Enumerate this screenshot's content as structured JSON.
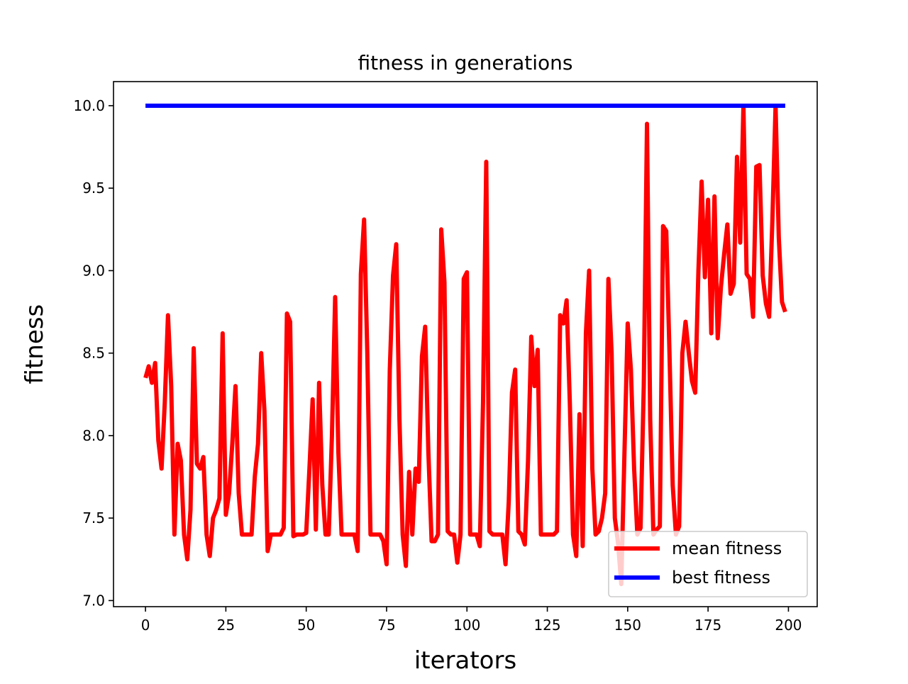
{
  "chart_data": {
    "type": "line",
    "title": "fitness in generations",
    "xlabel": "iterators",
    "ylabel": "fitness",
    "x": [
      0,
      1,
      2,
      3,
      4,
      5,
      6,
      7,
      8,
      9,
      10,
      11,
      12,
      13,
      14,
      15,
      16,
      17,
      18,
      19,
      20,
      21,
      22,
      23,
      24,
      25,
      26,
      27,
      28,
      29,
      30,
      31,
      32,
      33,
      34,
      35,
      36,
      37,
      38,
      39,
      40,
      41,
      42,
      43,
      44,
      45,
      46,
      47,
      48,
      49,
      50,
      51,
      52,
      53,
      54,
      55,
      56,
      57,
      58,
      59,
      60,
      61,
      62,
      63,
      64,
      65,
      66,
      67,
      68,
      69,
      70,
      71,
      72,
      73,
      74,
      75,
      76,
      77,
      78,
      79,
      80,
      81,
      82,
      83,
      84,
      85,
      86,
      87,
      88,
      89,
      90,
      91,
      92,
      93,
      94,
      95,
      96,
      97,
      98,
      99,
      100,
      101,
      102,
      103,
      104,
      105,
      106,
      107,
      108,
      109,
      110,
      111,
      112,
      113,
      114,
      115,
      116,
      117,
      118,
      119,
      120,
      121,
      122,
      123,
      124,
      125,
      126,
      127,
      128,
      129,
      130,
      131,
      132,
      133,
      134,
      135,
      136,
      137,
      138,
      139,
      140,
      141,
      142,
      143,
      144,
      145,
      146,
      147,
      148,
      149,
      150,
      151,
      152,
      153,
      154,
      155,
      156,
      157,
      158,
      159,
      160,
      161,
      162,
      163,
      164,
      165,
      166,
      167,
      168,
      169,
      170,
      171,
      172,
      173,
      174,
      175,
      176,
      177,
      178,
      179,
      180,
      181,
      182,
      183,
      184,
      185,
      186,
      187,
      188,
      189,
      190,
      191,
      192,
      193,
      194,
      195,
      196,
      197,
      198,
      199
    ],
    "series": [
      {
        "name": "mean fitness",
        "color": "#ff0000",
        "values": [
          8.35,
          8.42,
          8.32,
          8.44,
          7.97,
          7.8,
          8.2,
          8.73,
          8.3,
          7.4,
          7.95,
          7.85,
          7.4,
          7.25,
          7.55,
          8.53,
          7.83,
          7.8,
          7.87,
          7.4,
          7.27,
          7.5,
          7.55,
          7.62,
          8.62,
          7.52,
          7.65,
          7.95,
          8.3,
          7.65,
          7.4,
          7.4,
          7.4,
          7.4,
          7.75,
          7.95,
          8.5,
          8.15,
          7.3,
          7.4,
          7.4,
          7.4,
          7.4,
          7.44,
          8.74,
          8.69,
          7.39,
          7.4,
          7.4,
          7.4,
          7.41,
          7.8,
          8.22,
          7.43,
          8.32,
          7.7,
          7.4,
          7.4,
          8.0,
          8.84,
          7.9,
          7.4,
          7.4,
          7.4,
          7.4,
          7.4,
          7.3,
          8.98,
          9.31,
          8.5,
          7.4,
          7.4,
          7.4,
          7.4,
          7.36,
          7.22,
          8.4,
          8.97,
          9.16,
          8.1,
          7.4,
          7.21,
          7.78,
          7.4,
          7.8,
          7.72,
          8.48,
          8.66,
          7.9,
          7.36,
          7.36,
          7.4,
          9.25,
          8.93,
          7.42,
          7.4,
          7.4,
          7.23,
          7.4,
          8.95,
          8.99,
          7.4,
          7.4,
          7.4,
          7.33,
          8.2,
          9.66,
          7.42,
          7.4,
          7.4,
          7.4,
          7.4,
          7.22,
          7.6,
          8.26,
          8.4,
          7.42,
          7.4,
          7.34,
          7.85,
          8.6,
          8.3,
          8.52,
          7.4,
          7.4,
          7.4,
          7.4,
          7.4,
          7.42,
          8.73,
          8.68,
          8.82,
          8.2,
          7.4,
          7.27,
          8.13,
          7.33,
          8.62,
          9.0,
          7.8,
          7.4,
          7.42,
          7.5,
          7.65,
          8.95,
          8.5,
          7.5,
          7.35,
          7.1,
          7.9,
          8.68,
          8.4,
          7.8,
          7.4,
          7.44,
          8.3,
          9.89,
          8.1,
          7.4,
          7.43,
          7.45,
          9.27,
          9.24,
          8.5,
          7.7,
          7.4,
          7.45,
          8.5,
          8.69,
          8.5,
          8.33,
          8.26,
          9.0,
          9.54,
          8.96,
          9.43,
          8.62,
          9.45,
          8.59,
          8.9,
          9.1,
          9.28,
          8.86,
          8.92,
          9.69,
          9.17,
          10.0,
          8.98,
          8.95,
          8.72,
          9.63,
          9.64,
          8.97,
          8.8,
          8.72,
          9.3,
          10.0,
          9.2,
          8.81,
          8.75
        ]
      },
      {
        "name": "best fitness",
        "color": "#0000ff",
        "values": [
          10,
          10,
          10,
          10,
          10,
          10,
          10,
          10,
          10,
          10,
          10,
          10,
          10,
          10,
          10,
          10,
          10,
          10,
          10,
          10,
          10,
          10,
          10,
          10,
          10,
          10,
          10,
          10,
          10,
          10,
          10,
          10,
          10,
          10,
          10,
          10,
          10,
          10,
          10,
          10,
          10,
          10,
          10,
          10,
          10,
          10,
          10,
          10,
          10,
          10,
          10,
          10,
          10,
          10,
          10,
          10,
          10,
          10,
          10,
          10,
          10,
          10,
          10,
          10,
          10,
          10,
          10,
          10,
          10,
          10,
          10,
          10,
          10,
          10,
          10,
          10,
          10,
          10,
          10,
          10,
          10,
          10,
          10,
          10,
          10,
          10,
          10,
          10,
          10,
          10,
          10,
          10,
          10,
          10,
          10,
          10,
          10,
          10,
          10,
          10,
          10,
          10,
          10,
          10,
          10,
          10,
          10,
          10,
          10,
          10,
          10,
          10,
          10,
          10,
          10,
          10,
          10,
          10,
          10,
          10,
          10,
          10,
          10,
          10,
          10,
          10,
          10,
          10,
          10,
          10,
          10,
          10,
          10,
          10,
          10,
          10,
          10,
          10,
          10,
          10,
          10,
          10,
          10,
          10,
          10,
          10,
          10,
          10,
          10,
          10,
          10,
          10,
          10,
          10,
          10,
          10,
          10,
          10,
          10,
          10,
          10,
          10,
          10,
          10,
          10,
          10,
          10,
          10,
          10,
          10,
          10,
          10,
          10,
          10,
          10,
          10,
          10,
          10,
          10,
          10,
          10,
          10,
          10,
          10,
          10,
          10,
          10,
          10,
          10,
          10,
          10,
          10,
          10,
          10,
          10,
          10,
          10,
          10,
          10,
          10
        ]
      }
    ],
    "xlim": [
      -9.95,
      208.95
    ],
    "xticks": [
      0,
      25,
      50,
      75,
      100,
      125,
      150,
      175,
      200
    ],
    "ylim": [
      6.963,
      10.146
    ],
    "yticks": [
      {
        "value": 7,
        "label": "7.0"
      },
      {
        "value": 7.5,
        "label": "7.5"
      },
      {
        "value": 8,
        "label": "8.0"
      },
      {
        "value": 8.5,
        "label": "8.5"
      },
      {
        "value": 9,
        "label": "9.0"
      },
      {
        "value": 9.5,
        "label": "9.5"
      },
      {
        "value": 10,
        "label": "10.0"
      }
    ],
    "legend": "lower right"
  }
}
